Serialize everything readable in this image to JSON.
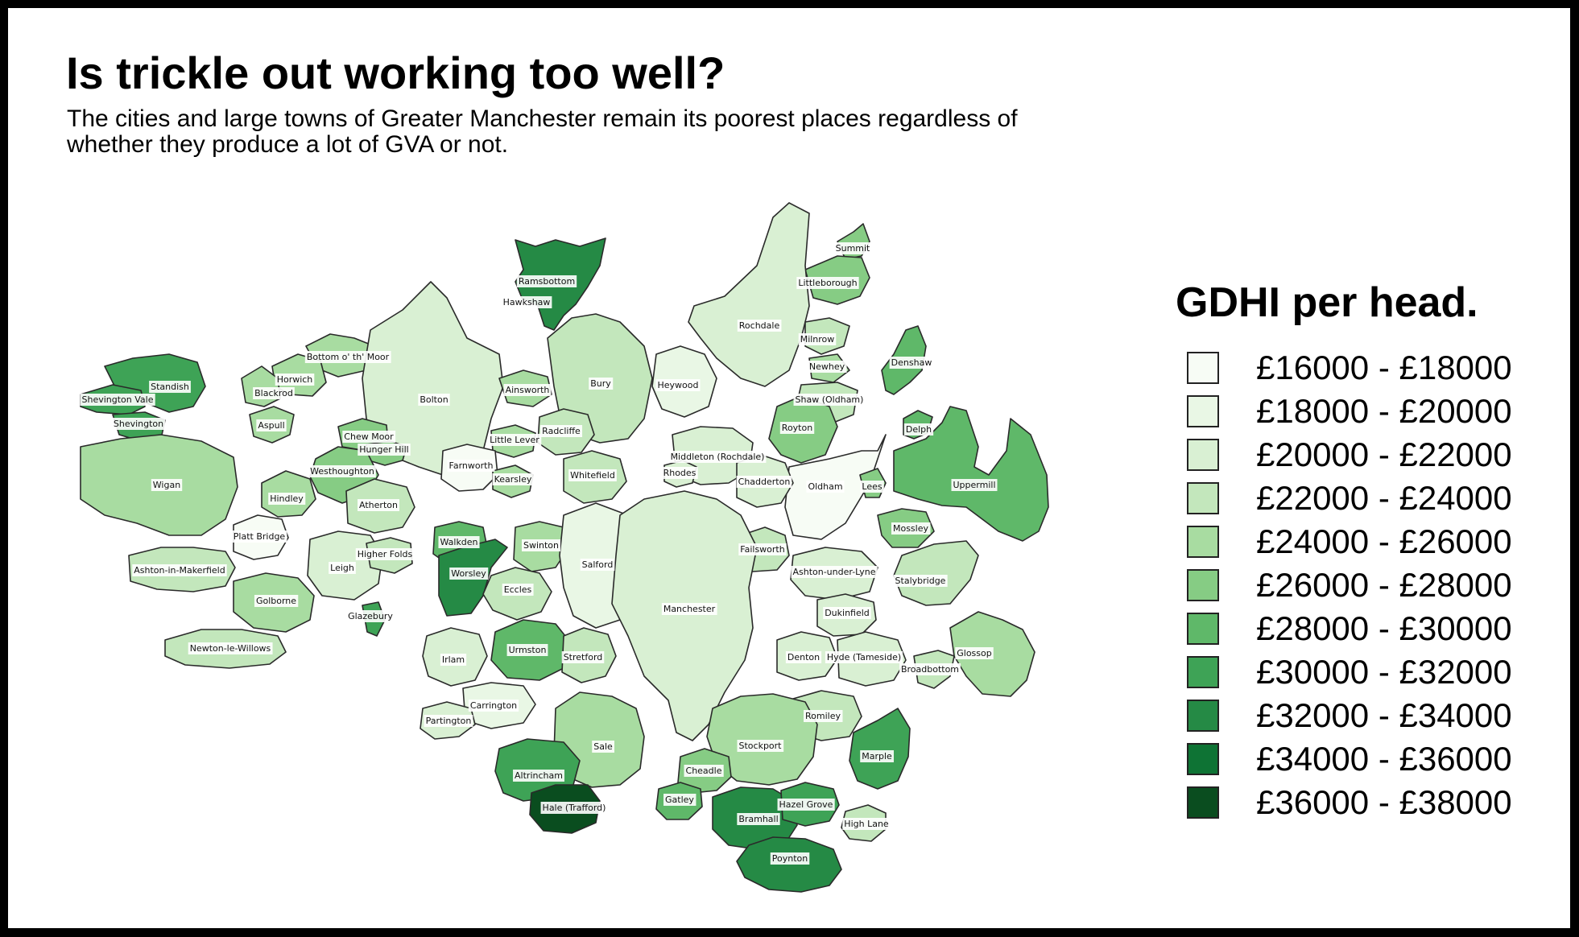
{
  "title": "Is trickle out working too well?",
  "subtitle": "The cities and large towns of Greater Manchester remain its poorest places regardless of whether they produce a lot of GVA or not.",
  "legend": {
    "title": "GDHI per head.",
    "items": [
      {
        "label": "£16000 - £18000",
        "color": "#f7fcf5"
      },
      {
        "label": "£18000 - £20000",
        "color": "#e9f7e5"
      },
      {
        "label": "£20000 - £22000",
        "color": "#d9f0d3"
      },
      {
        "label": "£22000 - £24000",
        "color": "#c3e7bc"
      },
      {
        "label": "£24000 - £26000",
        "color": "#a8dca1"
      },
      {
        "label": "£26000 - £28000",
        "color": "#86cc84"
      },
      {
        "label": "£28000 - £30000",
        "color": "#5fb869"
      },
      {
        "label": "£30000 - £32000",
        "color": "#3ea356"
      },
      {
        "label": "£32000 - £34000",
        "color": "#258a45"
      },
      {
        "label": "£34000 - £36000",
        "color": "#0e7334"
      },
      {
        "label": "£36000 - £38000",
        "color": "#0a4d1f"
      }
    ]
  },
  "places": [
    {
      "name": "Ramsbottom",
      "band": 8
    },
    {
      "name": "Hawkshaw",
      "band": 8
    },
    {
      "name": "Summit",
      "band": 5
    },
    {
      "name": "Littleborough",
      "band": 5
    },
    {
      "name": "Rochdale",
      "band": 2
    },
    {
      "name": "Milnrow",
      "band": 3
    },
    {
      "name": "Newhey",
      "band": 4
    },
    {
      "name": "Shaw (Oldham)",
      "band": 3
    },
    {
      "name": "Denshaw",
      "band": 6
    },
    {
      "name": "Delph",
      "band": 6
    },
    {
      "name": "Uppermill",
      "band": 6
    },
    {
      "name": "Royton",
      "band": 5
    },
    {
      "name": "Oldham",
      "band": 0
    },
    {
      "name": "Lees",
      "band": 5
    },
    {
      "name": "Mossley",
      "band": 5
    },
    {
      "name": "Stalybridge",
      "band": 3
    },
    {
      "name": "Glossop",
      "band": 4
    },
    {
      "name": "Broadbottom",
      "band": 3
    },
    {
      "name": "Bottom o' th' Moor",
      "band": 4
    },
    {
      "name": "Horwich",
      "band": 4
    },
    {
      "name": "Blackrod",
      "band": 4
    },
    {
      "name": "Standish",
      "band": 7
    },
    {
      "name": "Shevington Vale",
      "band": 7
    },
    {
      "name": "Shevington",
      "band": 7
    },
    {
      "name": "Aspull",
      "band": 4
    },
    {
      "name": "Bolton",
      "band": 2
    },
    {
      "name": "Chew Moor",
      "band": 5
    },
    {
      "name": "Hunger Hill",
      "band": 5
    },
    {
      "name": "Westhoughton",
      "band": 5
    },
    {
      "name": "Wigan",
      "band": 4
    },
    {
      "name": "Hindley",
      "band": 4
    },
    {
      "name": "Atherton",
      "band": 3
    },
    {
      "name": "Platt Bridge",
      "band": 0
    },
    {
      "name": "Ashton-in-Makerfield",
      "band": 3
    },
    {
      "name": "Leigh",
      "band": 2
    },
    {
      "name": "Higher Folds",
      "band": 3
    },
    {
      "name": "Golborne",
      "band": 4
    },
    {
      "name": "Newton-le-Willows",
      "band": 3
    },
    {
      "name": "Glazebury",
      "band": 7
    },
    {
      "name": "Ainsworth",
      "band": 4
    },
    {
      "name": "Bury",
      "band": 3
    },
    {
      "name": "Heywood",
      "band": 1
    },
    {
      "name": "Radcliffe",
      "band": 3
    },
    {
      "name": "Little Lever",
      "band": 4
    },
    {
      "name": "Farnworth",
      "band": 0
    },
    {
      "name": "Kearsley",
      "band": 4
    },
    {
      "name": "Whitefield",
      "band": 3
    },
    {
      "name": "Middleton (Rochdale)",
      "band": 2
    },
    {
      "name": "Rhodes",
      "band": 2
    },
    {
      "name": "Chadderton",
      "band": 2
    },
    {
      "name": "Walkden",
      "band": 6
    },
    {
      "name": "Swinton",
      "band": 4
    },
    {
      "name": "Worsley",
      "band": 8
    },
    {
      "name": "Salford",
      "band": 1
    },
    {
      "name": "Failsworth",
      "band": 3
    },
    {
      "name": "Ashton-under-Lyne",
      "band": 2
    },
    {
      "name": "Dukinfield",
      "band": 2
    },
    {
      "name": "Eccles",
      "band": 3
    },
    {
      "name": "Manchester",
      "band": 2
    },
    {
      "name": "Denton",
      "band": 2
    },
    {
      "name": "Hyde (Tameside)",
      "band": 2
    },
    {
      "name": "Irlam",
      "band": 2
    },
    {
      "name": "Urmston",
      "band": 6
    },
    {
      "name": "Stretford",
      "band": 3
    },
    {
      "name": "Carrington",
      "band": 1
    },
    {
      "name": "Partington",
      "band": 2
    },
    {
      "name": "Romiley",
      "band": 3
    },
    {
      "name": "Marple",
      "band": 7
    },
    {
      "name": "Sale",
      "band": 4
    },
    {
      "name": "Stockport",
      "band": 4
    },
    {
      "name": "Altrincham",
      "band": 7
    },
    {
      "name": "Cheadle",
      "band": 5
    },
    {
      "name": "Hale (Trafford)",
      "band": 10
    },
    {
      "name": "Gatley",
      "band": 6
    },
    {
      "name": "Bramhall",
      "band": 8
    },
    {
      "name": "Hazel Grove",
      "band": 7
    },
    {
      "name": "High Lane",
      "band": 3
    },
    {
      "name": "Poynton",
      "band": 8
    }
  ]
}
